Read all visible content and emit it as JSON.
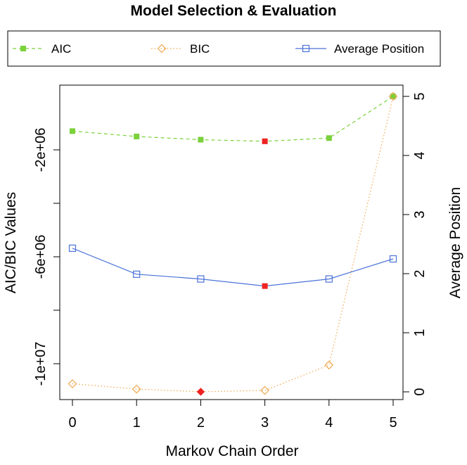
{
  "chart_data": {
    "type": "line",
    "title": "Model Selection & Evaluation",
    "xlabel": "Markov Chain Order",
    "ylabel_left": "AIC/BIC Values",
    "ylabel_right": "Average Position",
    "x": [
      0,
      1,
      2,
      3,
      4,
      5
    ],
    "x_ticks": [
      "0",
      "1",
      "2",
      "3",
      "4",
      "5"
    ],
    "left_ylim": [
      -11300000,
      0
    ],
    "left_y_ticks": [
      {
        "value": -2000000,
        "label": "-2e+06"
      },
      {
        "value": -6000000,
        "label": "-6e+06"
      },
      {
        "value": -10000000,
        "label": "-1e+07"
      }
    ],
    "right_ylim": [
      0,
      5
    ],
    "right_y_ticks": [
      {
        "value": 0,
        "label": "0"
      },
      {
        "value": 1,
        "label": "1"
      },
      {
        "value": 2,
        "label": "2"
      },
      {
        "value": 3,
        "label": "3"
      },
      {
        "value": 4,
        "label": "4"
      },
      {
        "value": 5,
        "label": "5"
      }
    ],
    "legend_position": "top",
    "grid": false,
    "highlight_color": "#ee2222",
    "series": [
      {
        "name": "AIC",
        "axis": "left",
        "color": "#7bd13a",
        "marker": "filled-square",
        "line": "dashed",
        "values": [
          -1300000,
          -1500000,
          -1620000,
          -1680000,
          -1560000,
          0
        ],
        "highlight_index": 3
      },
      {
        "name": "BIC",
        "axis": "left",
        "color": "#f0a850",
        "marker": "open-diamond",
        "line": "dotted",
        "values": [
          -10750000,
          -10950000,
          -11050000,
          -11000000,
          -10050000,
          0
        ],
        "highlight_index": 2
      },
      {
        "name": "Average Position",
        "axis": "right",
        "color": "#4a72d8",
        "marker": "open-square",
        "line": "solid",
        "values": [
          2.43,
          1.99,
          1.91,
          1.79,
          1.91,
          2.25
        ],
        "highlight_index": 3
      }
    ]
  }
}
